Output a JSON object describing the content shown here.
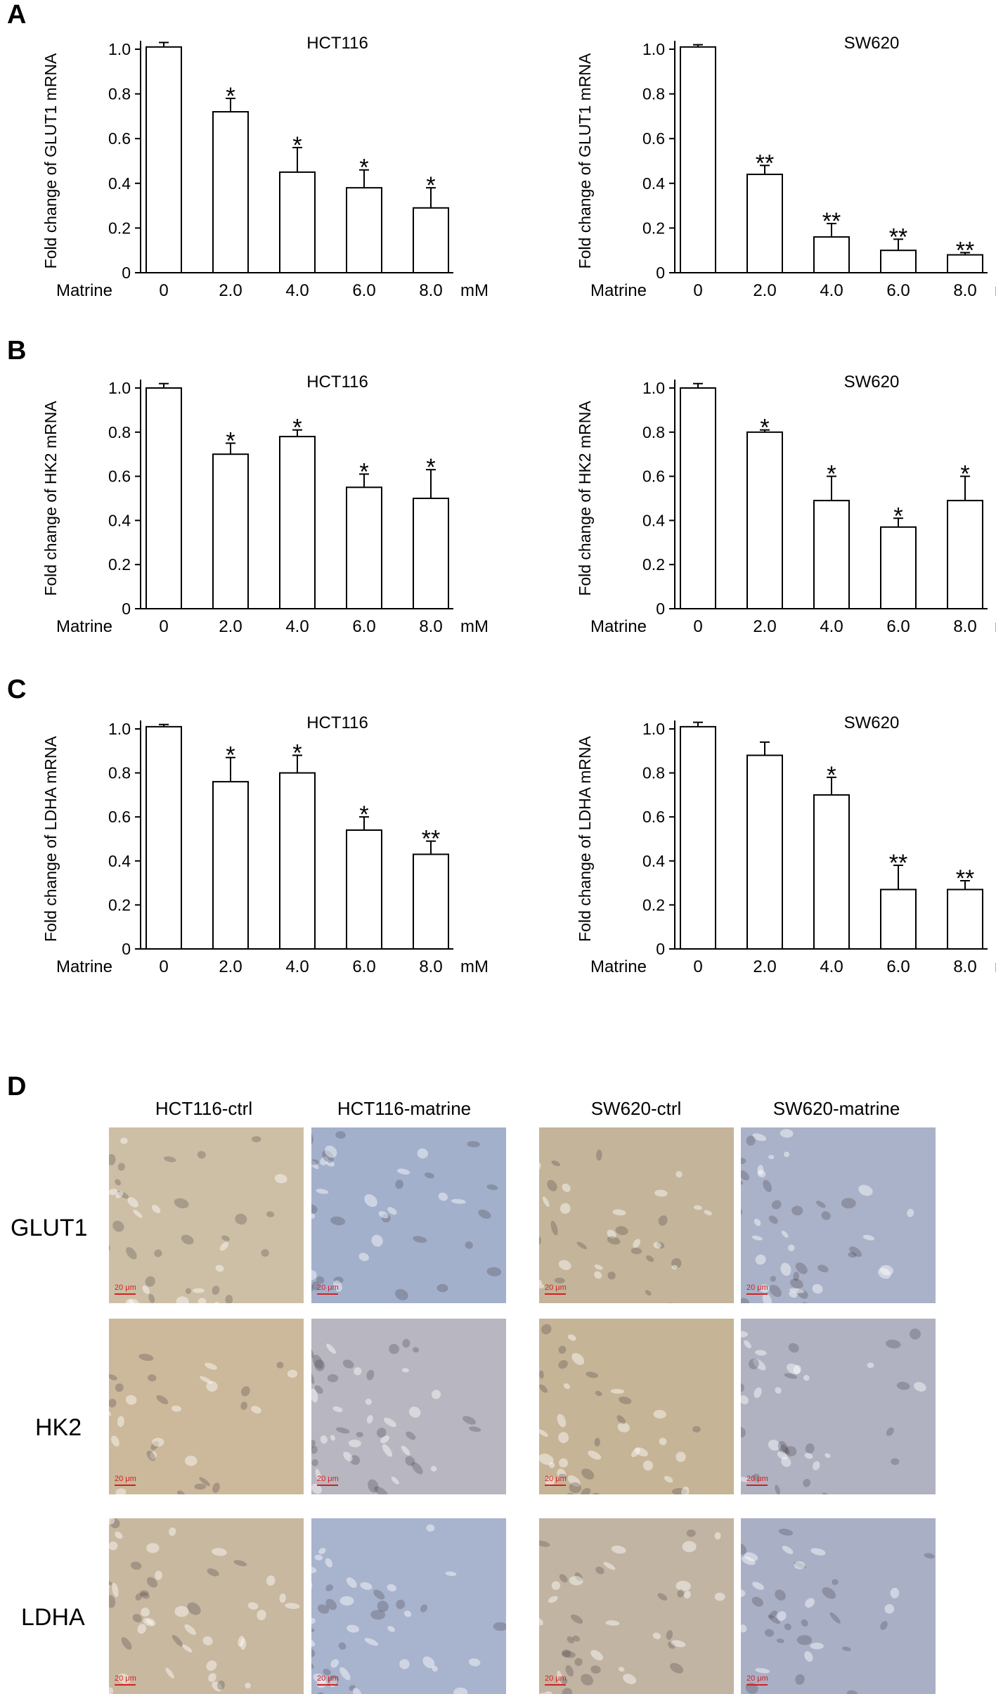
{
  "panels": {
    "A": "A",
    "B": "B",
    "C": "C",
    "D": "D"
  },
  "chart_data": [
    {
      "type": "bar",
      "panel": "A",
      "title": "HCT116",
      "ylabel": "Fold change of GLUT1 mRNA",
      "xlabel": "Matrine",
      "unit": "mM",
      "categories": [
        "0",
        "2.0",
        "4.0",
        "6.0",
        "8.0"
      ],
      "values": [
        1.01,
        0.72,
        0.45,
        0.38,
        0.29
      ],
      "errors": [
        0.02,
        0.06,
        0.11,
        0.08,
        0.09
      ],
      "significance": [
        "",
        "*",
        "*",
        "*",
        "*"
      ],
      "ylim": [
        0,
        1.0
      ],
      "yticks": [
        "0",
        "0.2",
        "0.4",
        "0.6",
        "0.8",
        "1.0"
      ]
    },
    {
      "type": "bar",
      "panel": "A",
      "title": "SW620",
      "ylabel": "Fold change of GLUT1 mRNA",
      "xlabel": "Matrine",
      "unit": "mM",
      "categories": [
        "0",
        "2.0",
        "4.0",
        "6.0",
        "8.0"
      ],
      "values": [
        1.01,
        0.44,
        0.16,
        0.1,
        0.08
      ],
      "errors": [
        0.01,
        0.04,
        0.06,
        0.05,
        0.01
      ],
      "significance": [
        "",
        "**",
        "**",
        "**",
        "**"
      ],
      "ylim": [
        0,
        1.0
      ],
      "yticks": [
        "0",
        "0.2",
        "0.4",
        "0.6",
        "0.8",
        "1.0"
      ]
    },
    {
      "type": "bar",
      "panel": "B",
      "title": "HCT116",
      "ylabel": "Fold change of HK2 mRNA",
      "xlabel": "Matrine",
      "unit": "mM",
      "categories": [
        "0",
        "2.0",
        "4.0",
        "6.0",
        "8.0"
      ],
      "values": [
        1.0,
        0.7,
        0.78,
        0.55,
        0.5
      ],
      "errors": [
        0.02,
        0.05,
        0.03,
        0.06,
        0.13
      ],
      "significance": [
        "",
        "*",
        "*",
        "*",
        "*"
      ],
      "ylim": [
        0,
        1.0
      ],
      "yticks": [
        "0",
        "0.2",
        "0.4",
        "0.6",
        "0.8",
        "1.0"
      ]
    },
    {
      "type": "bar",
      "panel": "B",
      "title": "SW620",
      "ylabel": "Fold change of HK2 mRNA",
      "xlabel": "Matrine",
      "unit": "mM",
      "categories": [
        "0",
        "2.0",
        "4.0",
        "6.0",
        "8.0"
      ],
      "values": [
        1.0,
        0.8,
        0.49,
        0.37,
        0.49
      ],
      "errors": [
        0.02,
        0.01,
        0.11,
        0.04,
        0.11
      ],
      "significance": [
        "",
        "*",
        "*",
        "*",
        "*"
      ],
      "ylim": [
        0,
        1.0
      ],
      "yticks": [
        "0",
        "0.2",
        "0.4",
        "0.6",
        "0.8",
        "1.0"
      ]
    },
    {
      "type": "bar",
      "panel": "C",
      "title": "HCT116",
      "ylabel": "Fold change of LDHA mRNA",
      "xlabel": "Matrine",
      "unit": "mM",
      "categories": [
        "0",
        "2.0",
        "4.0",
        "6.0",
        "8.0"
      ],
      "values": [
        1.01,
        0.76,
        0.8,
        0.54,
        0.43
      ],
      "errors": [
        0.01,
        0.11,
        0.08,
        0.06,
        0.06
      ],
      "significance": [
        "",
        "*",
        "*",
        "*",
        "**"
      ],
      "ylim": [
        0,
        1.0
      ],
      "yticks": [
        "0",
        "0.2",
        "0.4",
        "0.6",
        "0.8",
        "1.0"
      ]
    },
    {
      "type": "bar",
      "panel": "C",
      "title": "SW620",
      "ylabel": "Fold change of  LDHA mRNA",
      "xlabel": "Matrine",
      "unit": "mM",
      "categories": [
        "0",
        "2.0",
        "4.0",
        "6.0",
        "8.0"
      ],
      "values": [
        1.01,
        0.88,
        0.7,
        0.27,
        0.27
      ],
      "errors": [
        0.02,
        0.06,
        0.08,
        0.11,
        0.04
      ],
      "significance": [
        "",
        "",
        "*",
        "**",
        "**"
      ],
      "ylim": [
        0,
        1.0
      ],
      "yticks": [
        "0",
        "0.2",
        "0.4",
        "0.6",
        "0.8",
        "1.0"
      ]
    }
  ],
  "histology": {
    "columns": [
      "HCT116-ctrl",
      "HCT116-matrine",
      "SW620-ctrl",
      "SW620-matrine"
    ],
    "rows": [
      "GLUT1",
      "HK2",
      "LDHA"
    ],
    "scale_label": "20 μm",
    "stain_colors": {
      "brown": "#c9b79d",
      "blue": "#a9b2c8"
    }
  }
}
